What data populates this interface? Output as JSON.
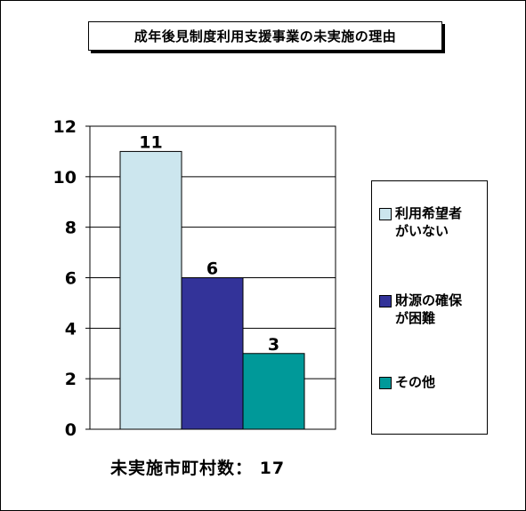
{
  "chart_data": {
    "type": "bar",
    "title": "成年後見制度利用支援事業の未実施の理由",
    "categories": [
      "利用希望者がいない",
      "財源の確保が困難",
      "その他"
    ],
    "values": [
      11,
      6,
      3
    ],
    "data_labels": [
      "11",
      "6",
      "3"
    ],
    "colors": [
      "#cce6ee",
      "#333399",
      "#009999"
    ],
    "ylim": [
      0,
      12
    ],
    "yticks": [
      "0",
      "2",
      "4",
      "6",
      "8",
      "10",
      "12"
    ],
    "xlabel": "",
    "ylabel": "",
    "grid": true,
    "legend_position": "right",
    "legend": [
      {
        "line1": "利用希望者",
        "line2": "がいない"
      },
      {
        "line1": "財源の確保",
        "line2": "が困難"
      },
      {
        "line1": "その他",
        "line2": ""
      }
    ]
  },
  "footnote": "未実施市町村数： 17"
}
